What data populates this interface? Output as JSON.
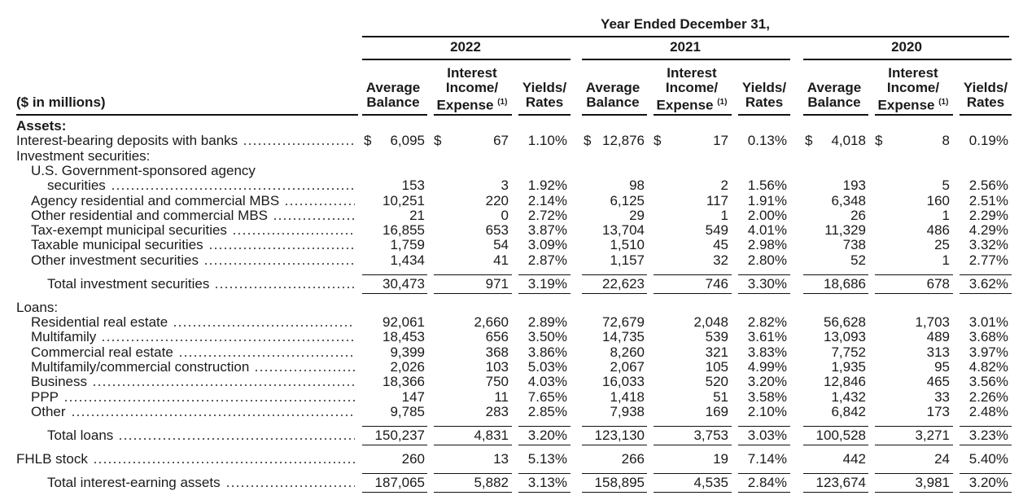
{
  "header": {
    "title": "Year Ended December 31,",
    "units": "($ in millions)",
    "years": [
      "2022",
      "2021",
      "2020"
    ],
    "columns": [
      {
        "lines": [
          "Average",
          "Balance"
        ]
      },
      {
        "lines": [
          "Interest",
          "Income/",
          "Expense"
        ],
        "note": "(1)"
      },
      {
        "lines": [
          "Yields/",
          "Rates"
        ]
      }
    ]
  },
  "rows": [
    {
      "type": "section",
      "label": "Assets:",
      "indent": 0
    },
    {
      "type": "row",
      "label": "Interest-bearing deposits with banks",
      "indent": 0,
      "currency": "$",
      "values": [
        "6,095",
        "67",
        "1.10%",
        "12,876",
        "17",
        "0.13%",
        "4,018",
        "8",
        "0.19%"
      ]
    },
    {
      "type": "label",
      "label": "Investment securities:",
      "indent": 0
    },
    {
      "type": "label",
      "label": "U.S. Government-sponsored agency",
      "indent": 1
    },
    {
      "type": "row",
      "label": "securities",
      "indent": 2,
      "values": [
        "153",
        "3",
        "1.92%",
        "98",
        "2",
        "1.56%",
        "193",
        "5",
        "2.56%"
      ]
    },
    {
      "type": "row",
      "label": "Agency residential and commercial MBS",
      "indent": 1,
      "values": [
        "10,251",
        "220",
        "2.14%",
        "6,125",
        "117",
        "1.91%",
        "6,348",
        "160",
        "2.51%"
      ]
    },
    {
      "type": "row",
      "label": "Other residential and commercial MBS",
      "indent": 1,
      "values": [
        "21",
        "0",
        "2.72%",
        "29",
        "1",
        "2.00%",
        "26",
        "1",
        "2.29%"
      ]
    },
    {
      "type": "row",
      "label": "Tax-exempt municipal securities",
      "indent": 1,
      "values": [
        "16,855",
        "653",
        "3.87%",
        "13,704",
        "549",
        "4.01%",
        "11,329",
        "486",
        "4.29%"
      ]
    },
    {
      "type": "row",
      "label": "Taxable municipal securities",
      "indent": 1,
      "values": [
        "1,759",
        "54",
        "3.09%",
        "1,510",
        "45",
        "2.98%",
        "738",
        "25",
        "3.32%"
      ]
    },
    {
      "type": "row",
      "label": "Other investment securities",
      "indent": 1,
      "values": [
        "1,434",
        "41",
        "2.87%",
        "1,157",
        "32",
        "2.80%",
        "52",
        "1",
        "2.77%"
      ]
    },
    {
      "type": "total",
      "label": "Total investment securities",
      "indent": 2,
      "values": [
        "30,473",
        "971",
        "3.19%",
        "22,623",
        "746",
        "3.30%",
        "18,686",
        "678",
        "3.62%"
      ]
    },
    {
      "type": "label",
      "label": "Loans:",
      "indent": 0
    },
    {
      "type": "row",
      "label": "Residential real estate",
      "indent": 1,
      "values": [
        "92,061",
        "2,660",
        "2.89%",
        "72,679",
        "2,048",
        "2.82%",
        "56,628",
        "1,703",
        "3.01%"
      ]
    },
    {
      "type": "row",
      "label": "Multifamily",
      "indent": 1,
      "values": [
        "18,453",
        "656",
        "3.50%",
        "14,735",
        "539",
        "3.61%",
        "13,093",
        "489",
        "3.68%"
      ]
    },
    {
      "type": "row",
      "label": "Commercial real estate",
      "indent": 1,
      "values": [
        "9,399",
        "368",
        "3.86%",
        "8,260",
        "321",
        "3.83%",
        "7,752",
        "313",
        "3.97%"
      ]
    },
    {
      "type": "row",
      "label": "Multifamily/commercial construction",
      "indent": 1,
      "values": [
        "2,026",
        "103",
        "5.03%",
        "2,067",
        "105",
        "4.99%",
        "1,935",
        "95",
        "4.82%"
      ]
    },
    {
      "type": "row",
      "label": "Business",
      "indent": 1,
      "values": [
        "18,366",
        "750",
        "4.03%",
        "16,033",
        "520",
        "3.20%",
        "12,846",
        "465",
        "3.56%"
      ]
    },
    {
      "type": "row",
      "label": "PPP",
      "indent": 1,
      "values": [
        "147",
        "11",
        "7.65%",
        "1,418",
        "51",
        "3.58%",
        "1,432",
        "33",
        "2.26%"
      ]
    },
    {
      "type": "row",
      "label": "Other",
      "indent": 1,
      "values": [
        "9,785",
        "283",
        "2.85%",
        "7,938",
        "169",
        "2.10%",
        "6,842",
        "173",
        "2.48%"
      ]
    },
    {
      "type": "total",
      "label": "Total loans",
      "indent": 2,
      "values": [
        "150,237",
        "4,831",
        "3.20%",
        "123,130",
        "3,753",
        "3.03%",
        "100,528",
        "3,271",
        "3.23%"
      ]
    },
    {
      "type": "row",
      "label": "FHLB stock",
      "indent": 0,
      "values": [
        "260",
        "13",
        "5.13%",
        "266",
        "19",
        "7.14%",
        "442",
        "24",
        "5.40%"
      ]
    },
    {
      "type": "total",
      "label": "Total interest-earning assets",
      "indent": 2,
      "values": [
        "187,065",
        "5,882",
        "3.13%",
        "158,895",
        "4,535",
        "2.84%",
        "123,674",
        "3,981",
        "3.20%"
      ]
    }
  ]
}
